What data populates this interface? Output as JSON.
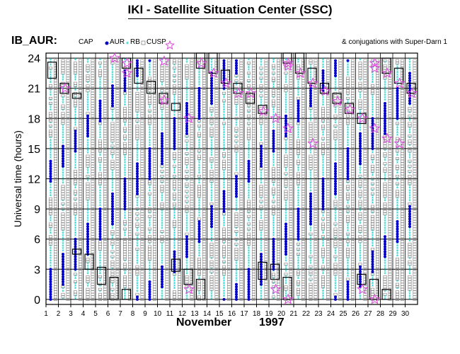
{
  "title": "IKI - Satellite Situation Center (SSC)",
  "chart_data": {
    "type": "scatter",
    "panel_label": "IB_AUR:",
    "legend": {
      "cap": "CAP",
      "aur": "AUR",
      "rb": "RB",
      "cusp": "CUSP"
    },
    "conjugation_note": "& conjugations with Super-Darn 1",
    "xlabel_month": "November",
    "xlabel_year": "1997",
    "ylabel": "Universal time (hours)",
    "xlim": [
      1,
      31
    ],
    "ylim": [
      -0.5,
      24.5
    ],
    "x_ticks": [
      1,
      2,
      3,
      4,
      5,
      6,
      7,
      8,
      9,
      10,
      11,
      12,
      13,
      14,
      15,
      16,
      17,
      18,
      19,
      20,
      21,
      22,
      23,
      24,
      25,
      26,
      27,
      28,
      29,
      30
    ],
    "y_ticks": [
      0,
      3,
      6,
      9,
      12,
      15,
      18,
      21,
      24
    ],
    "grid": "horizontal-every-3h",
    "colors": {
      "cap": "#0000cc",
      "aur": "#00cccc",
      "rb": "#888888",
      "cusp": "#000000",
      "superdarn": "#dd44dd"
    },
    "days": [
      2,
      3,
      4,
      5,
      6,
      7,
      8,
      9,
      10,
      11,
      12,
      13,
      14,
      15,
      16,
      17,
      18,
      19,
      20,
      21,
      22,
      23,
      24,
      25,
      26,
      27,
      28,
      29,
      30,
      31
    ],
    "cusp_intervals": [
      {
        "day": 2,
        "from": 22,
        "to": 23.6
      },
      {
        "day": 3,
        "from": 20.5,
        "to": 21.5
      },
      {
        "day": 4,
        "from": 4.5,
        "to": 5.0
      },
      {
        "day": 4,
        "from": 20.0,
        "to": 20.5
      },
      {
        "day": 5,
        "from": 3.0,
        "to": 4.5
      },
      {
        "day": 6,
        "from": 1.5,
        "to": 3.2
      },
      {
        "day": 7,
        "from": 0,
        "to": 2.2
      },
      {
        "day": 8,
        "from": 0,
        "to": 1.0
      },
      {
        "day": 8,
        "from": 23.0,
        "to": 24.0
      },
      {
        "day": 9,
        "from": 21.5,
        "to": 23.0
      },
      {
        "day": 10,
        "from": 20.5,
        "to": 21.7
      },
      {
        "day": 11,
        "from": 19.5,
        "to": 20.5
      },
      {
        "day": 12,
        "from": 18.8,
        "to": 19.5
      },
      {
        "day": 12,
        "from": 2.8,
        "to": 4.0
      },
      {
        "day": 13,
        "from": 1.5,
        "to": 3.0
      },
      {
        "day": 14,
        "from": 0,
        "to": 2.0
      },
      {
        "day": 14,
        "from": 23.0,
        "to": 24.5
      },
      {
        "day": 15,
        "from": 22.5,
        "to": 24.5
      },
      {
        "day": 16,
        "from": 21.5,
        "to": 22.8
      },
      {
        "day": 17,
        "from": 20.5,
        "to": 21.5
      },
      {
        "day": 18,
        "from": 19.5,
        "to": 20.5
      },
      {
        "day": 19,
        "from": 18.5,
        "to": 19.3
      },
      {
        "day": 19,
        "from": 2.0,
        "to": 3.7
      },
      {
        "day": 20,
        "from": 2.0,
        "to": 3.5
      },
      {
        "day": 21,
        "from": 0,
        "to": 2.2
      },
      {
        "day": 21,
        "from": 23.5,
        "to": 24.5
      },
      {
        "day": 22,
        "from": 22.5,
        "to": 24.5
      },
      {
        "day": 23,
        "from": 21.5,
        "to": 23.0
      },
      {
        "day": 24,
        "from": 20.5,
        "to": 21.5
      },
      {
        "day": 25,
        "from": 19.5,
        "to": 20.5
      },
      {
        "day": 26,
        "from": 18.5,
        "to": 19.5
      },
      {
        "day": 27,
        "from": 17.5,
        "to": 18.5
      },
      {
        "day": 27,
        "from": 1.5,
        "to": 2.5
      },
      {
        "day": 28,
        "from": 0,
        "to": 2.0
      },
      {
        "day": 29,
        "from": 0,
        "to": 1.0
      },
      {
        "day": 29,
        "from": 22.5,
        "to": 24.0
      },
      {
        "day": 30,
        "from": 21.5,
        "to": 23.0
      },
      {
        "day": 31,
        "from": 20.5,
        "to": 21.5
      }
    ],
    "superdarn_conjugations": [
      {
        "day": 3,
        "hour": 21.0
      },
      {
        "day": 7,
        "hour": 24.0
      },
      {
        "day": 8,
        "hour": 23.5
      },
      {
        "day": 8,
        "hour": 22.5
      },
      {
        "day": 11,
        "hour": 19.8
      },
      {
        "day": 11,
        "hour": 23.7
      },
      {
        "day": 13,
        "hour": 18.0
      },
      {
        "day": 13,
        "hour": 1.0
      },
      {
        "day": 14,
        "hour": 23.5
      },
      {
        "day": 15,
        "hour": 22.5
      },
      {
        "day": 16,
        "hour": 21.5
      },
      {
        "day": 17,
        "hour": 20.5
      },
      {
        "day": 18,
        "hour": 20.5
      },
      {
        "day": 19,
        "hour": 18.7
      },
      {
        "day": 20,
        "hour": 18.0
      },
      {
        "day": 20,
        "hour": 1.0
      },
      {
        "day": 21,
        "hour": 23.5
      },
      {
        "day": 21,
        "hour": 23.2
      },
      {
        "day": 21,
        "hour": 17.0
      },
      {
        "day": 21,
        "hour": 0.0
      },
      {
        "day": 22,
        "hour": 22.5
      },
      {
        "day": 23,
        "hour": 21.5
      },
      {
        "day": 23,
        "hour": 15.5
      },
      {
        "day": 24,
        "hour": 20.7
      },
      {
        "day": 25,
        "hour": 19.7
      },
      {
        "day": 26,
        "hour": 18.9
      },
      {
        "day": 27,
        "hour": 18.0
      },
      {
        "day": 27,
        "hour": 1.0
      },
      {
        "day": 28,
        "hour": 23.5
      },
      {
        "day": 28,
        "hour": 23.0
      },
      {
        "day": 28,
        "hour": 17.0
      },
      {
        "day": 28,
        "hour": 0.0
      },
      {
        "day": 29,
        "hour": 22.5
      },
      {
        "day": 29,
        "hour": 16.0
      },
      {
        "day": 30,
        "hour": 21.5
      },
      {
        "day": 30,
        "hour": 15.5
      },
      {
        "day": 31,
        "hour": 20.5
      }
    ]
  }
}
